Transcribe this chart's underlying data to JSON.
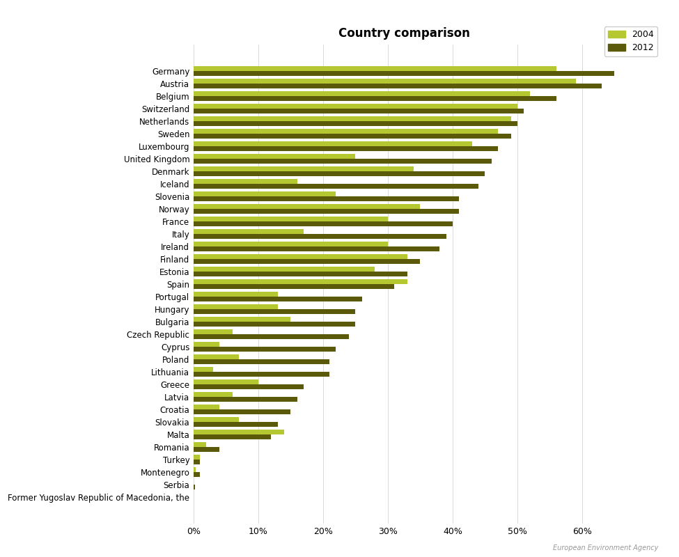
{
  "title": "Country comparison",
  "color_2004": "#b5c832",
  "color_2012": "#5a5a0a",
  "legend_labels": [
    "2004",
    "2012"
  ],
  "xlabel_ticks": [
    0,
    10,
    20,
    30,
    40,
    50,
    60
  ],
  "countries": [
    "Germany",
    "Austria",
    "Belgium",
    "Switzerland",
    "Netherlands",
    "Sweden",
    "Luxembourg",
    "United Kingdom",
    "Denmark",
    "Iceland",
    "Slovenia",
    "Norway",
    "France",
    "Italy",
    "Ireland",
    "Finland",
    "Estonia",
    "Spain",
    "Portugal",
    "Hungary",
    "Bulgaria",
    "Czech Republic",
    "Cyprus",
    "Poland",
    "Lithuania",
    "Greece",
    "Latvia",
    "Croatia",
    "Slovakia",
    "Malta",
    "Romania",
    "Turkey",
    "Montenegro",
    "Serbia",
    "Former Yugoslav Republic of Macedonia, the"
  ],
  "values_2004": [
    56,
    59,
    52,
    50,
    49,
    47,
    43,
    25,
    34,
    16,
    22,
    35,
    30,
    17,
    30,
    33,
    28,
    33,
    13,
    13,
    15,
    6,
    4,
    7,
    3,
    10,
    6,
    4,
    7,
    14,
    2,
    1,
    0.3,
    0,
    0
  ],
  "values_2012": [
    67,
    63,
    56,
    51,
    50,
    49,
    47,
    46,
    45,
    44,
    41,
    41,
    40,
    39,
    38,
    35,
    33,
    31,
    26,
    25,
    25,
    24,
    22,
    21,
    21,
    17,
    16,
    15,
    13,
    12,
    4,
    1,
    1,
    0.2,
    0
  ],
  "background_color": "#ffffff",
  "bar_height": 0.38,
  "figsize": [
    9.75,
    8.0
  ],
  "dpi": 100
}
